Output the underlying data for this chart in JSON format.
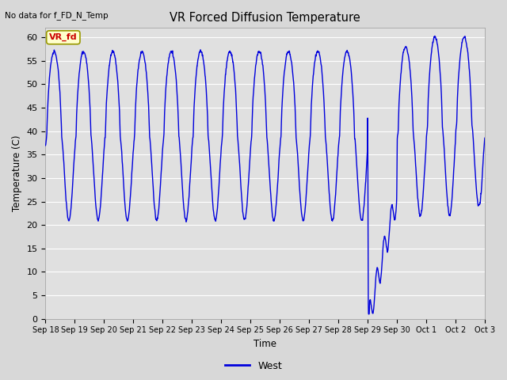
{
  "title": "VR Forced Diffusion Temperature",
  "xlabel": "Time",
  "ylabel": "Temperature (C)",
  "top_left_text": "No data for f_FD_N_Temp",
  "annotation_text": "VR_fd",
  "legend_label": "West",
  "line_color": "#0000dd",
  "ylim": [
    0,
    62
  ],
  "yticks": [
    0,
    5,
    10,
    15,
    20,
    25,
    30,
    35,
    40,
    45,
    50,
    55,
    60
  ],
  "xtick_labels": [
    "Sep 18",
    "Sep 19",
    "Sep 20",
    "Sep 21",
    "Sep 22",
    "Sep 23",
    "Sep 24",
    "Sep 25",
    "Sep 26",
    "Sep 27",
    "Sep 28",
    "Sep 29",
    "Sep 30",
    "Oct 1",
    "Oct 2",
    "Oct 3"
  ],
  "bg_color": "#e0e0e0",
  "grid_color": "#ffffff",
  "annotation_box_color": "#ffffcc",
  "annotation_text_color": "#cc0000",
  "figsize": [
    6.4,
    4.8
  ],
  "dpi": 100
}
